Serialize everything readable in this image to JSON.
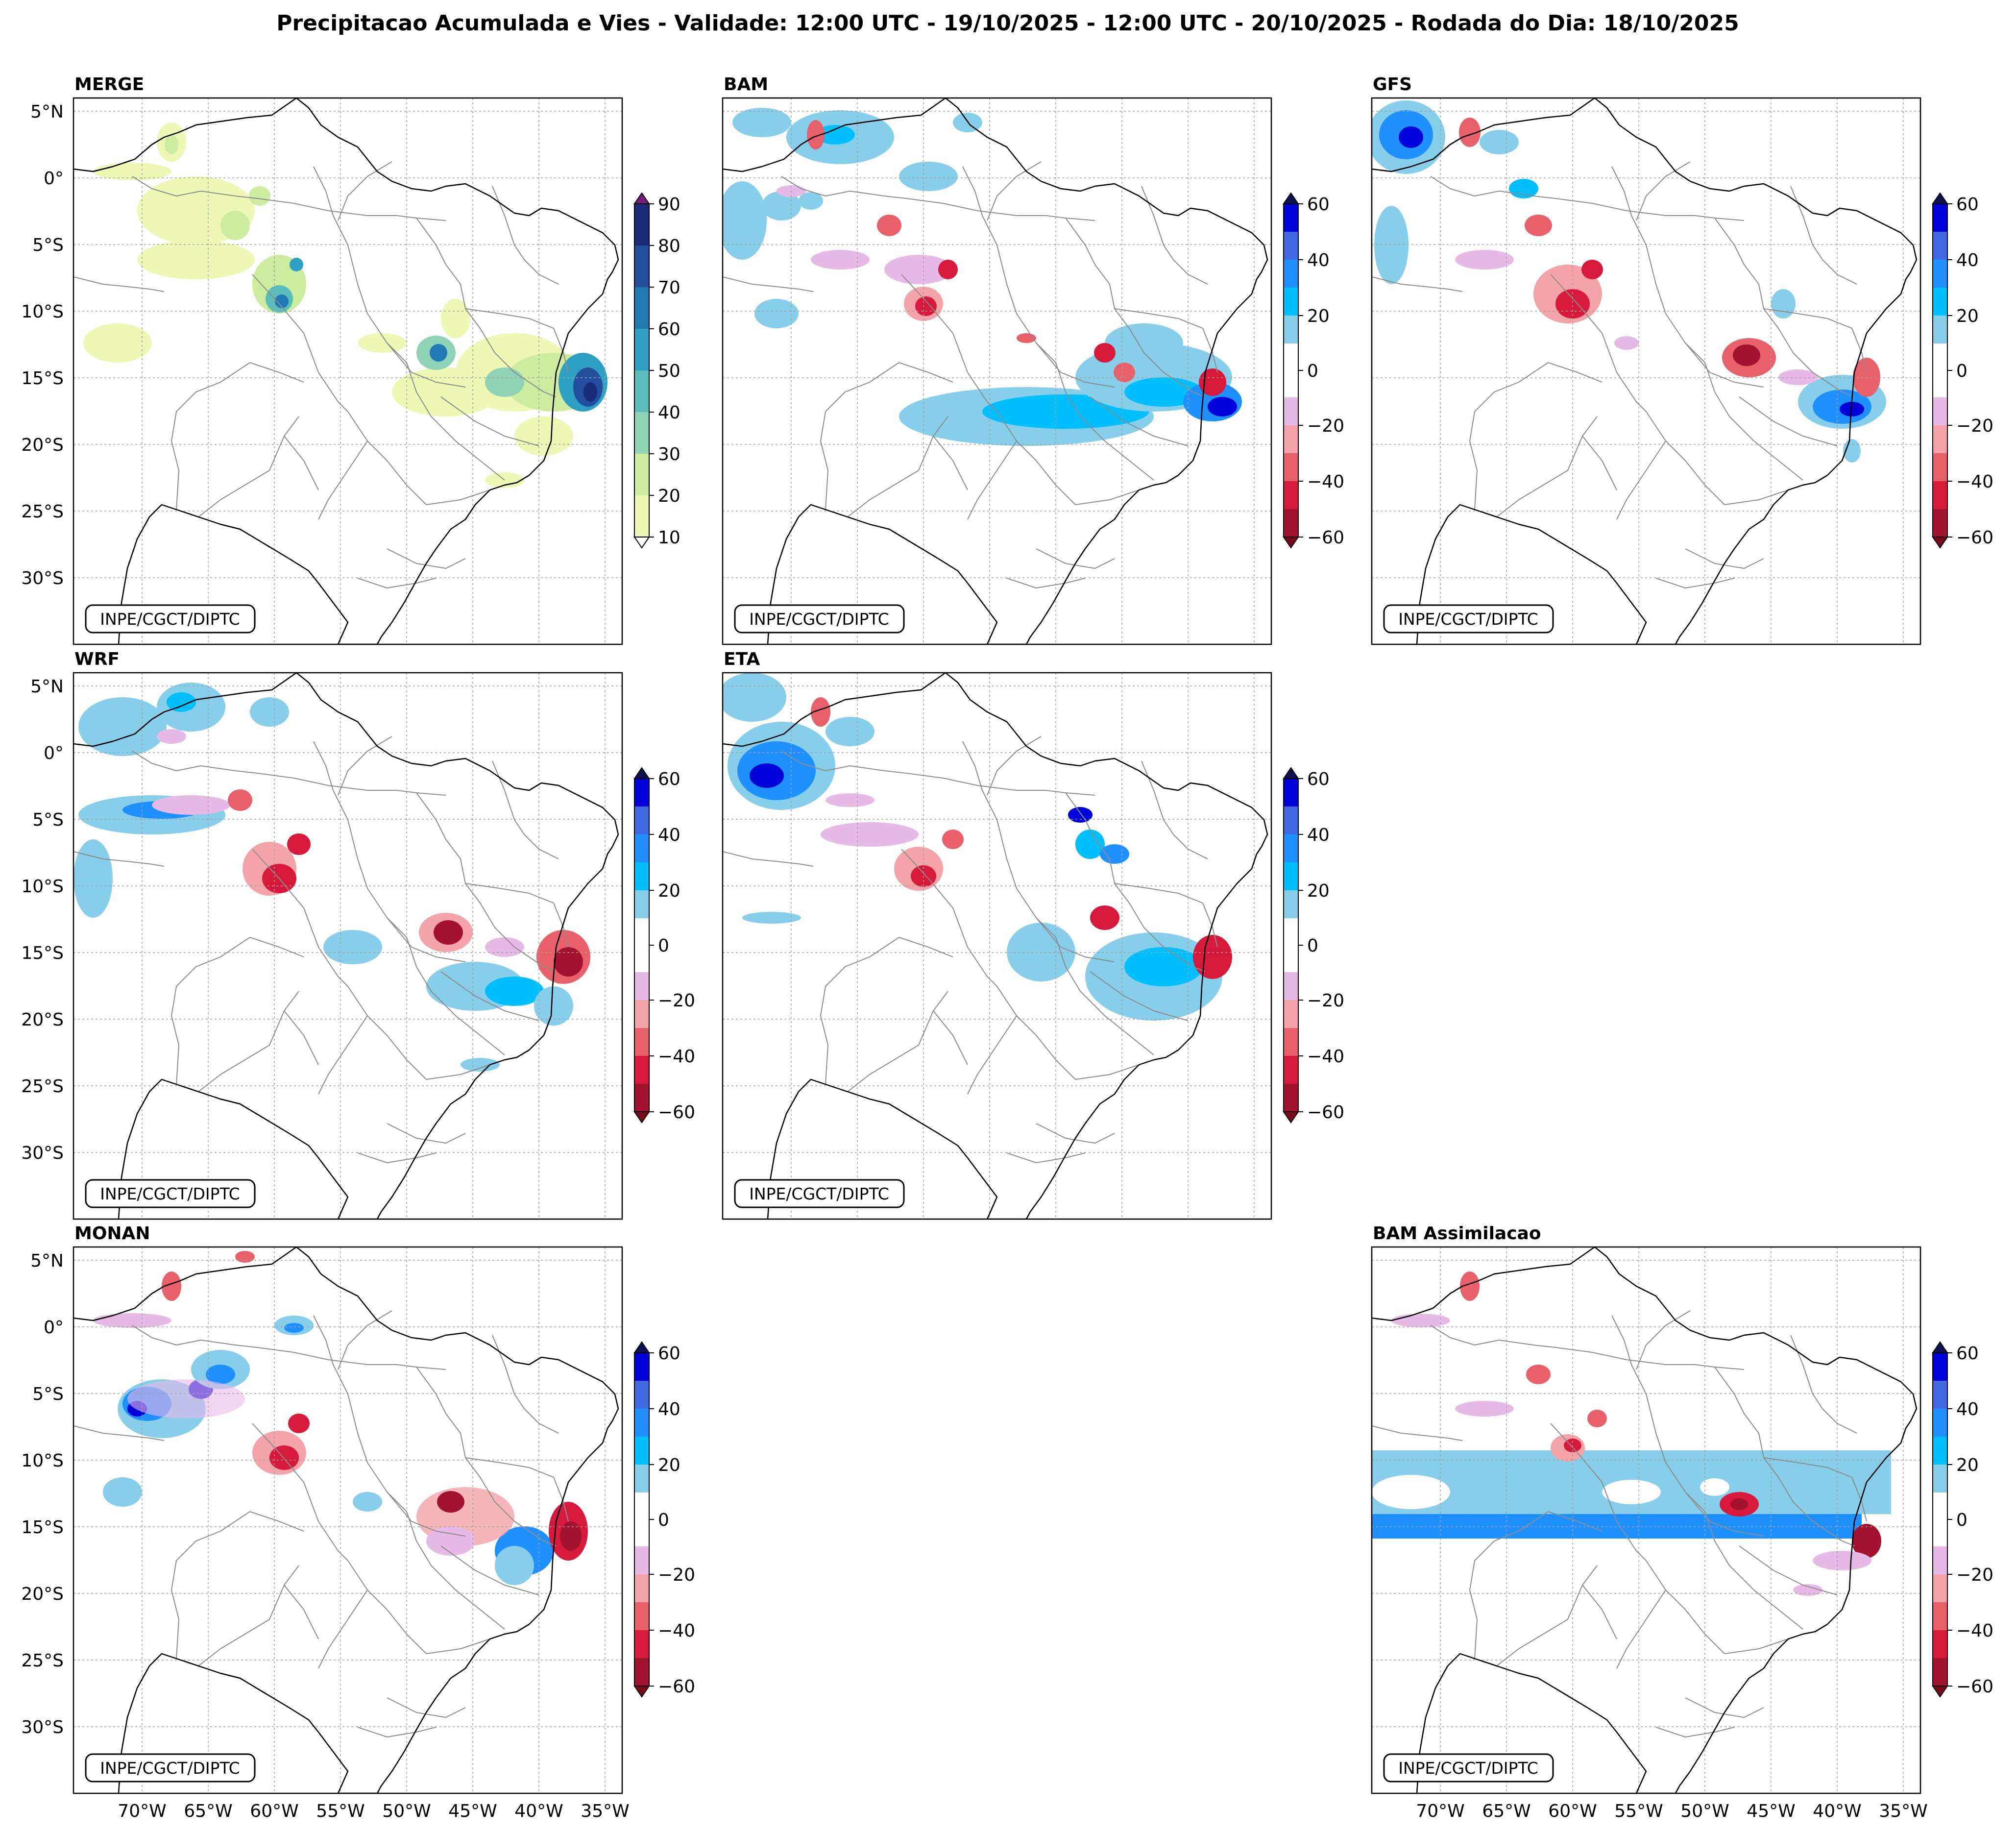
{
  "figure": {
    "title": "Precipitacao Acumulada e Vies - Validade: 12:00 UTC - 19/10/2025 - 12:00 UTC - 20/10/2025 - Rodada do Dia: 18/10/2025",
    "credit": "INPE/CGCT/DIPTC"
  },
  "axes": {
    "lat_labels": [
      "5°N",
      "0°",
      "5°S",
      "10°S",
      "15°S",
      "20°S",
      "25°S",
      "30°S"
    ],
    "lon_labels": [
      "70°W",
      "65°W",
      "60°W",
      "55°W",
      "50°W",
      "45°W",
      "40°W",
      "35°W"
    ]
  },
  "panels": [
    {
      "id": "merge",
      "title": "MERGE",
      "type": "precipitation",
      "show_lat": true,
      "show_lon": false,
      "colorbar": "precip"
    },
    {
      "id": "bam",
      "title": "BAM",
      "type": "bias",
      "show_lat": false,
      "show_lon": false,
      "colorbar": "bias"
    },
    {
      "id": "gfs",
      "title": "GFS",
      "type": "bias",
      "show_lat": false,
      "show_lon": false,
      "colorbar": "bias"
    },
    {
      "id": "wrf",
      "title": "WRF",
      "type": "bias",
      "show_lat": true,
      "show_lon": false,
      "colorbar": "bias"
    },
    {
      "id": "eta",
      "title": "ETA",
      "type": "bias",
      "show_lat": false,
      "show_lon": false,
      "colorbar": "bias"
    },
    {
      "id": "monan",
      "title": "MONAN",
      "type": "bias",
      "show_lat": true,
      "show_lon": true,
      "colorbar": "bias"
    },
    {
      "id": "bam-assim",
      "title": "BAM Assimilacao",
      "type": "bias",
      "show_lat": false,
      "show_lon": true,
      "colorbar": "bias"
    }
  ],
  "colorbars": {
    "precip": {
      "ticks": [
        "10",
        "20",
        "30",
        "40",
        "50",
        "60",
        "70",
        "80",
        "90"
      ],
      "colors": [
        "#eef8b4",
        "#cceda0",
        "#8fd3b6",
        "#5abdbc",
        "#2ea0c4",
        "#2179b4",
        "#234e9e",
        "#1a2b78"
      ],
      "under": "#ffffff",
      "over": "#7a1a7a"
    },
    "bias": {
      "ticks": [
        "60",
        "40",
        "20",
        "0",
        "−20",
        "−40",
        "−60"
      ],
      "colors_top_down": [
        "#0000d8",
        "#4169e1",
        "#1e90ff",
        "#00bfff",
        "#87ceeb",
        "#ffffff",
        "#ffffff",
        "#e7b9e7",
        "#f4a3a8",
        "#e8606a",
        "#d7193c",
        "#a3122f"
      ],
      "over": "#101050",
      "under": "#7a0a1a"
    }
  },
  "map_colors": {
    "coast": "#000000",
    "states": "#8c8c8c",
    "grid": "#a0a0a0"
  }
}
